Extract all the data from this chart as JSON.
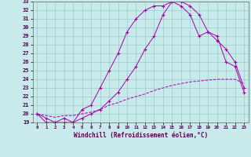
{
  "xlabel": "Windchill (Refroidissement éolien,°C)",
  "xlim": [
    -0.5,
    23.5
  ],
  "ylim": [
    19,
    33
  ],
  "xticks": [
    0,
    1,
    2,
    3,
    4,
    5,
    6,
    7,
    8,
    9,
    10,
    11,
    12,
    13,
    14,
    15,
    16,
    17,
    18,
    19,
    20,
    21,
    22,
    23
  ],
  "yticks": [
    19,
    20,
    21,
    22,
    23,
    24,
    25,
    26,
    27,
    28,
    29,
    30,
    31,
    32,
    33
  ],
  "line_color": "#aa00aa",
  "bg_color": "#c8eaea",
  "grid_color": "#99cccc",
  "lines": [
    {
      "x": [
        0,
        1,
        2,
        3,
        4,
        5,
        6,
        7,
        8,
        9,
        10,
        11,
        12,
        13,
        14,
        15,
        16,
        17,
        18,
        19,
        20,
        21,
        22,
        23
      ],
      "y": [
        20.0,
        19.0,
        19.0,
        19.5,
        19.0,
        20.5,
        21.0,
        23.0,
        25.0,
        27.0,
        29.5,
        31.0,
        32.0,
        32.5,
        32.5,
        33.0,
        32.5,
        31.5,
        29.0,
        29.5,
        29.0,
        26.0,
        25.5,
        22.5
      ],
      "marker": "+",
      "linestyle": "-"
    },
    {
      "x": [
        0,
        1,
        2,
        3,
        4,
        5,
        6,
        7,
        8,
        9,
        10,
        11,
        12,
        13,
        14,
        15,
        16,
        17,
        18,
        19,
        20,
        21,
        22,
        23
      ],
      "y": [
        20.0,
        19.5,
        19.0,
        19.0,
        19.0,
        19.5,
        20.0,
        20.5,
        21.5,
        22.5,
        24.0,
        25.5,
        27.5,
        29.0,
        31.5,
        33.0,
        33.0,
        32.5,
        31.5,
        29.5,
        28.5,
        27.5,
        26.0,
        23.0
      ],
      "marker": "+",
      "linestyle": "-"
    },
    {
      "x": [
        0,
        1,
        2,
        3,
        4,
        5,
        6,
        7,
        8,
        9,
        10,
        11,
        12,
        13,
        14,
        15,
        16,
        17,
        18,
        19,
        20,
        21,
        22,
        23
      ],
      "y": [
        20.0,
        19.8,
        19.6,
        19.8,
        19.8,
        20.0,
        20.2,
        20.5,
        21.0,
        21.3,
        21.7,
        22.0,
        22.3,
        22.7,
        23.0,
        23.3,
        23.5,
        23.7,
        23.8,
        23.9,
        24.0,
        24.0,
        24.0,
        23.5
      ],
      "marker": null,
      "linestyle": "--"
    }
  ]
}
